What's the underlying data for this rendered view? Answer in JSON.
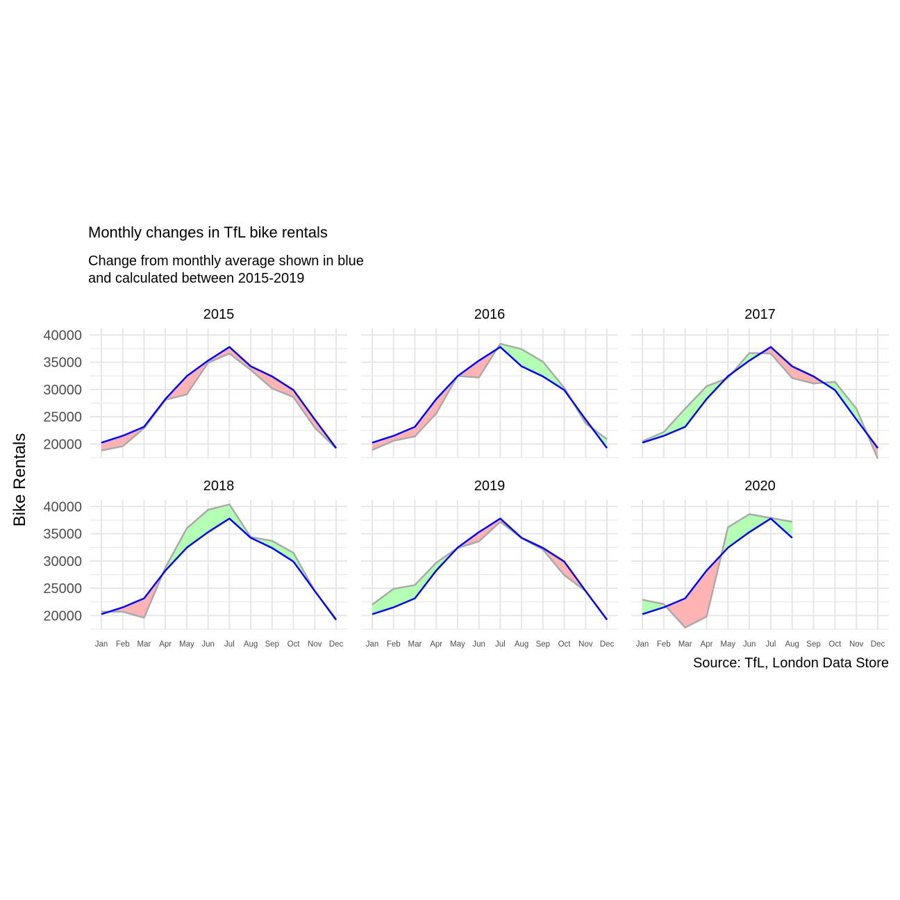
{
  "title": "Monthly changes in TfL bike rentals",
  "subtitle_lines": [
    "Change from monthly average shown in blue",
    "and calculated between 2015-2019"
  ],
  "caption": "Source: TfL, London Data Store",
  "colors": {
    "average_line": "#0000ff",
    "actual_line": "#aaaaaa",
    "above_average_fill": "#b3ffb3",
    "below_average_fill": "#ffb3b3",
    "grid": "#e6e6e6"
  },
  "chart_data": {
    "type": "area",
    "ylabel": "Bike Rentals",
    "xlabel": "",
    "ylim": [
      17500,
      41200
    ],
    "yticks": [
      20000,
      25000,
      30000,
      35000,
      40000
    ],
    "grid": true,
    "legend": "none",
    "months": [
      "Jan",
      "Feb",
      "Mar",
      "Apr",
      "May",
      "Jun",
      "Jul",
      "Aug",
      "Sep",
      "Oct",
      "Nov",
      "Dec"
    ],
    "average": [
      20250,
      21500,
      23150,
      28250,
      32450,
      35300,
      37800,
      34250,
      32400,
      29900,
      24500,
      19250
    ],
    "panels": [
      {
        "year": "2015",
        "actual": [
          18800,
          19600,
          22900,
          28100,
          29100,
          34900,
          36600,
          33600,
          30200,
          28600,
          23000,
          19200
        ]
      },
      {
        "year": "2016",
        "actual": [
          18900,
          20600,
          21400,
          25600,
          32500,
          32200,
          38400,
          37400,
          35100,
          30300,
          23800,
          20900
        ]
      },
      {
        "year": "2017",
        "actual": [
          20500,
          22200,
          26500,
          30600,
          32100,
          36700,
          36600,
          32100,
          31100,
          31400,
          26500,
          17300
        ]
      },
      {
        "year": "2018",
        "actual": [
          20700,
          20700,
          19600,
          28800,
          36000,
          39400,
          40400,
          34400,
          33700,
          31500,
          24500,
          19100
        ]
      },
      {
        "year": "2019",
        "actual": [
          22000,
          24900,
          25600,
          29700,
          32400,
          33600,
          37200,
          34200,
          32100,
          27400,
          24500,
          19200
        ]
      },
      {
        "year": "2020",
        "actual": [
          22900,
          22100,
          17800,
          19800,
          36200,
          38600,
          37900,
          37200
        ]
      }
    ]
  }
}
